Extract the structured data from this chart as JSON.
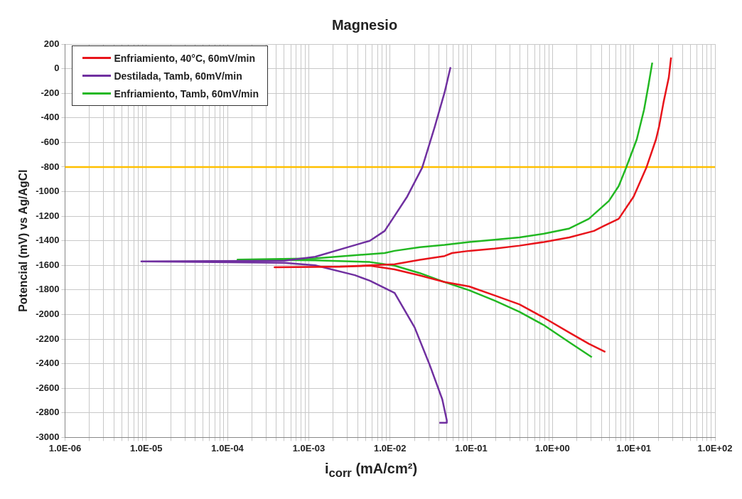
{
  "chart_data": {
    "type": "line",
    "title": "Magnesio",
    "xlabel": "i$_{corr}$ (mA/cm²)",
    "ylabel": "Potencial (mV) vs Ag/AgCl",
    "log": "x",
    "grid": true,
    "legend": "top left",
    "marker": "none",
    "line_style": "solid",
    "xlim": [
      1e-06,
      100
    ],
    "xticks": [
      {
        "value": 1e-06,
        "label": "1.0E-06"
      },
      {
        "value": 2e-06,
        "label": null
      },
      {
        "value": 3e-06,
        "label": null
      },
      {
        "value": 4e-06,
        "label": null
      },
      {
        "value": 5e-06,
        "label": null
      },
      {
        "value": 6e-06,
        "label": null
      },
      {
        "value": 7e-06,
        "label": null
      },
      {
        "value": 8e-06,
        "label": null
      },
      {
        "value": 9e-06,
        "label": null
      },
      {
        "value": 1e-05,
        "label": "1.0E-05"
      },
      {
        "value": 2e-05,
        "label": null
      },
      {
        "value": 3e-05,
        "label": null
      },
      {
        "value": 4e-05,
        "label": null
      },
      {
        "value": 5e-05,
        "label": null
      },
      {
        "value": 6e-05,
        "label": null
      },
      {
        "value": 7e-05,
        "label": null
      },
      {
        "value": 8e-05,
        "label": null
      },
      {
        "value": 9e-05,
        "label": null
      },
      {
        "value": 0.0001,
        "label": "1.0E-04"
      },
      {
        "value": 0.0002,
        "label": null
      },
      {
        "value": 0.0003,
        "label": null
      },
      {
        "value": 0.0004,
        "label": null
      },
      {
        "value": 0.0005,
        "label": null
      },
      {
        "value": 0.0006,
        "label": null
      },
      {
        "value": 0.0007,
        "label": null
      },
      {
        "value": 0.0008,
        "label": null
      },
      {
        "value": 0.0009,
        "label": null
      },
      {
        "value": 0.001,
        "label": "1.0E-03"
      },
      {
        "value": 0.002,
        "label": null
      },
      {
        "value": 0.003,
        "label": null
      },
      {
        "value": 0.004,
        "label": null
      },
      {
        "value": 0.005,
        "label": null
      },
      {
        "value": 0.006,
        "label": null
      },
      {
        "value": 0.007,
        "label": null
      },
      {
        "value": 0.008,
        "label": null
      },
      {
        "value": 0.009,
        "label": null
      },
      {
        "value": 0.01,
        "label": "1.0E-02"
      },
      {
        "value": 0.02,
        "label": null
      },
      {
        "value": 0.03,
        "label": null
      },
      {
        "value": 0.04,
        "label": null
      },
      {
        "value": 0.05,
        "label": null
      },
      {
        "value": 0.06,
        "label": null
      },
      {
        "value": 0.07,
        "label": null
      },
      {
        "value": 0.08,
        "label": null
      },
      {
        "value": 0.09,
        "label": null
      },
      {
        "value": 0.1,
        "label": "1.0E-01"
      },
      {
        "value": 0.2,
        "label": null
      },
      {
        "value": 0.3,
        "label": null
      },
      {
        "value": 0.4,
        "label": null
      },
      {
        "value": 0.5,
        "label": null
      },
      {
        "value": 0.6,
        "label": null
      },
      {
        "value": 0.7,
        "label": null
      },
      {
        "value": 0.8,
        "label": null
      },
      {
        "value": 0.9,
        "label": null
      },
      {
        "value": 1,
        "label": "1.0E+00"
      },
      {
        "value": 2,
        "label": null
      },
      {
        "value": 3,
        "label": null
      },
      {
        "value": 4,
        "label": null
      },
      {
        "value": 5,
        "label": null
      },
      {
        "value": 6,
        "label": null
      },
      {
        "value": 7,
        "label": null
      },
      {
        "value": 8,
        "label": null
      },
      {
        "value": 9,
        "label": null
      },
      {
        "value": 10,
        "label": "1.0E+01"
      },
      {
        "value": 20,
        "label": null
      },
      {
        "value": 30,
        "label": null
      },
      {
        "value": 40,
        "label": null
      },
      {
        "value": 50,
        "label": null
      },
      {
        "value": 60,
        "label": null
      },
      {
        "value": 70,
        "label": null
      },
      {
        "value": 80,
        "label": null
      },
      {
        "value": 90,
        "label": null
      },
      {
        "value": 100,
        "label": "1.0E+02"
      }
    ],
    "ylim": [
      -3000,
      200
    ],
    "yticks": [
      200,
      0,
      -200,
      -400,
      -600,
      -800,
      -1000,
      -1200,
      -1400,
      -1600,
      -1800,
      -2000,
      -2200,
      -2400,
      -2600,
      -2800,
      -3000
    ],
    "ref_lines": [
      {
        "axis": "y",
        "value": -800,
        "color": "#ffc000"
      }
    ],
    "series": [
      {
        "name": "Enfriamiento, 40°C, 60mV/min",
        "color": "#e8141b",
        "x": [
          4.47,
          2.8,
          1.61,
          0.785,
          0.391,
          0.194,
          0.0944,
          0.047,
          0.0233,
          0.0114,
          0.00565,
          0.00242,
          0.00038,
          0.00242,
          0.00565,
          0.0114,
          0.0233,
          0.047,
          0.058,
          0.0944,
          0.194,
          0.391,
          0.785,
          1.61,
          3.24,
          4.28,
          6.53,
          9.98,
          14.3,
          18.8,
          20.5,
          23.3,
          27,
          28.8
        ],
        "values": [
          -2305,
          -2238,
          -2147,
          -2026,
          -1917,
          -1845,
          -1772,
          -1736,
          -1682,
          -1633,
          -1603,
          -1612,
          -1615,
          -1610,
          -1600,
          -1591,
          -1555,
          -1524,
          -1500,
          -1482,
          -1464,
          -1440,
          -1410,
          -1373,
          -1320,
          -1280,
          -1222,
          -1040,
          -805,
          -575,
          -471,
          -272,
          -72,
          91
        ]
      },
      {
        "name": "Destilada, Tamb, 60mV/min",
        "color": "#7030a0",
        "x": [
          0.0405,
          0.05,
          0.05,
          0.044,
          0.0308,
          0.0201,
          0.0114,
          0.00565,
          0.0037,
          0.0012,
          0.0005,
          8.7e-06,
          0.0005,
          0.0012,
          0.0035,
          0.00565,
          0.0086,
          0.0114,
          0.0163,
          0.0249,
          0.0356,
          0.047,
          0.0556
        ],
        "values": [
          -2880,
          -2880,
          -2860,
          -2690,
          -2410,
          -2105,
          -1825,
          -1725,
          -1680,
          -1600,
          -1580,
          -1568,
          -1562,
          -1530,
          -1440,
          -1400,
          -1320,
          -1197,
          -1040,
          -805,
          -471,
          -193,
          12
        ]
      },
      {
        "name": "Enfriamiento, Tamb, 60mV/min",
        "color": "#22b822",
        "x": [
          3.05,
          1.61,
          0.785,
          0.391,
          0.194,
          0.0944,
          0.047,
          0.0233,
          0.0114,
          0.00565,
          0.0012,
          0.000133,
          0.0012,
          0.0086,
          0.0114,
          0.0233,
          0.047,
          0.0944,
          0.194,
          0.391,
          0.785,
          1.61,
          2.8,
          4.95,
          6.53,
          8.07,
          10.9,
          13.4,
          15.2,
          16.9
        ],
        "values": [
          -2347,
          -2226,
          -2087,
          -1978,
          -1887,
          -1803,
          -1736,
          -1663,
          -1603,
          -1573,
          -1560,
          -1553,
          -1543,
          -1500,
          -1482,
          -1452,
          -1434,
          -1410,
          -1391,
          -1373,
          -1343,
          -1300,
          -1222,
          -1076,
          -955,
          -805,
          -575,
          -333,
          -133,
          49
        ]
      }
    ]
  }
}
